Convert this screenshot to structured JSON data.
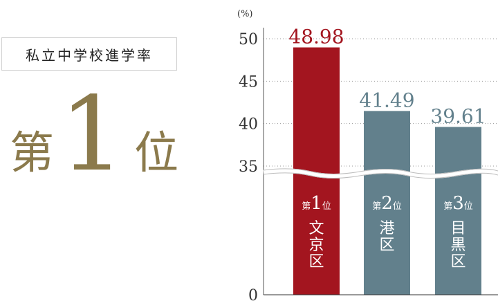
{
  "headline": {
    "badge": "私立中学校進学率",
    "rank_prefix": "第",
    "rank_number": "1",
    "rank_suffix": "位"
  },
  "colors": {
    "first": "#a3151f",
    "others": "#62808c",
    "gold": "#8b7a4c"
  },
  "chart_data": {
    "type": "bar",
    "unit": "(%)",
    "y_ticks": [
      0,
      35,
      40,
      45,
      50
    ],
    "ylim": [
      0,
      50
    ],
    "axis_break_between": [
      0,
      35
    ],
    "grid": true,
    "categories": [
      {
        "rank_prefix": "第",
        "rank_number": "1",
        "rank_suffix": "位",
        "name": "文京区"
      },
      {
        "rank_prefix": "第",
        "rank_number": "2",
        "rank_suffix": "位",
        "name": "港区"
      },
      {
        "rank_prefix": "第",
        "rank_number": "3",
        "rank_suffix": "位",
        "name": "目黒区"
      }
    ],
    "values": [
      48.98,
      41.49,
      39.61
    ],
    "value_labels": [
      "48.98",
      "41.49",
      "39.61"
    ]
  }
}
